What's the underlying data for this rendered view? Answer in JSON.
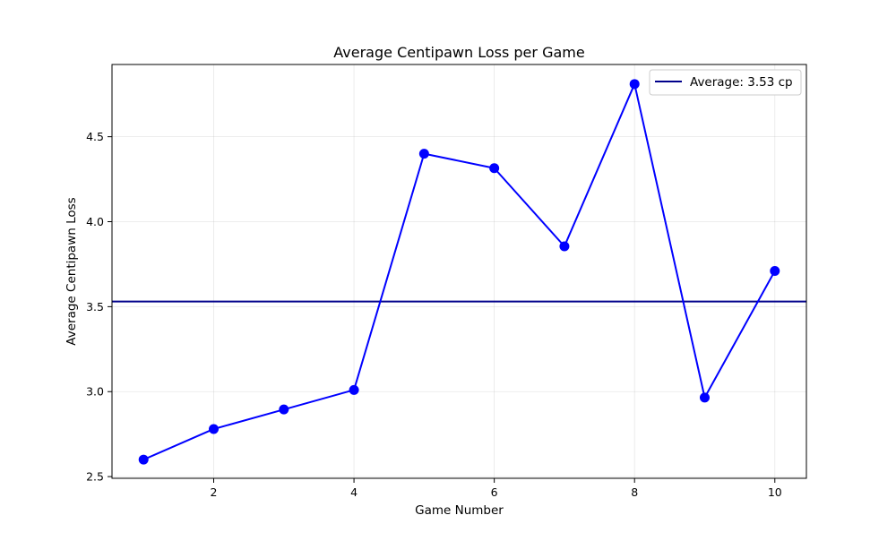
{
  "chart_data": {
    "type": "line",
    "title": "Average Centipawn Loss per Game",
    "xlabel": "Game Number",
    "ylabel": "Average Centipawn Loss",
    "x": [
      1,
      2,
      3,
      4,
      5,
      6,
      7,
      8,
      9,
      10
    ],
    "series": [
      {
        "values": [
          2.6,
          2.78,
          2.895,
          3.01,
          4.4,
          4.315,
          3.855,
          4.81,
          2.965,
          3.71
        ],
        "color": "#0000ff",
        "marker": "circle"
      }
    ],
    "reference_line": {
      "y": 3.53,
      "label": "Average: 3.53 cp",
      "color": "#00008b"
    },
    "xlim": [
      0.55,
      10.45
    ],
    "ylim": [
      2.49,
      4.925
    ],
    "xticks": [
      2,
      4,
      6,
      8,
      10
    ],
    "yticks": [
      2.5,
      3.0,
      3.5,
      4.0,
      4.5
    ],
    "xtick_labels": [
      "2",
      "4",
      "6",
      "8",
      "10"
    ],
    "ytick_labels": [
      "2.5",
      "3.0",
      "3.5",
      "4.0",
      "4.5"
    ],
    "grid": true,
    "legend_position": "top-right"
  }
}
